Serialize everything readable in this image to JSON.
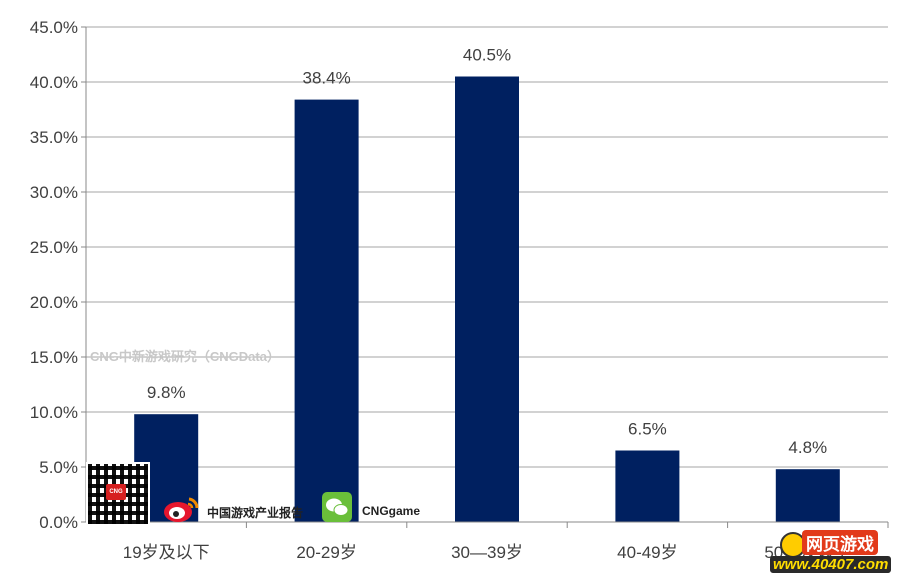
{
  "chart_data": {
    "type": "bar",
    "categories": [
      "19岁及以下",
      "20-29岁",
      "30—39岁",
      "40-49岁",
      "50岁及以上"
    ],
    "values": [
      9.8,
      38.4,
      40.5,
      6.5,
      4.8
    ],
    "data_labels": [
      "9.8%",
      "38.4%",
      "40.5%",
      "6.5%",
      "4.8%"
    ],
    "y_ticks": [
      "0.0%",
      "5.0%",
      "10.0%",
      "15.0%",
      "20.0%",
      "25.0%",
      "30.0%",
      "35.0%",
      "40.0%",
      "45.0%"
    ],
    "ylim": [
      0,
      45
    ],
    "title": "",
    "xlabel": "",
    "ylabel": "",
    "grid": true,
    "bar_color": "#002060"
  },
  "watermark": "CNG中新游戏研究（CNGData）",
  "branding": {
    "qr_badge": "CNG",
    "weibo_text": "中国游戏产业报告",
    "wechat_text": "CNGgame",
    "site_logo_top": "网页游戏",
    "site_logo_bottom": "www.40407.com"
  }
}
